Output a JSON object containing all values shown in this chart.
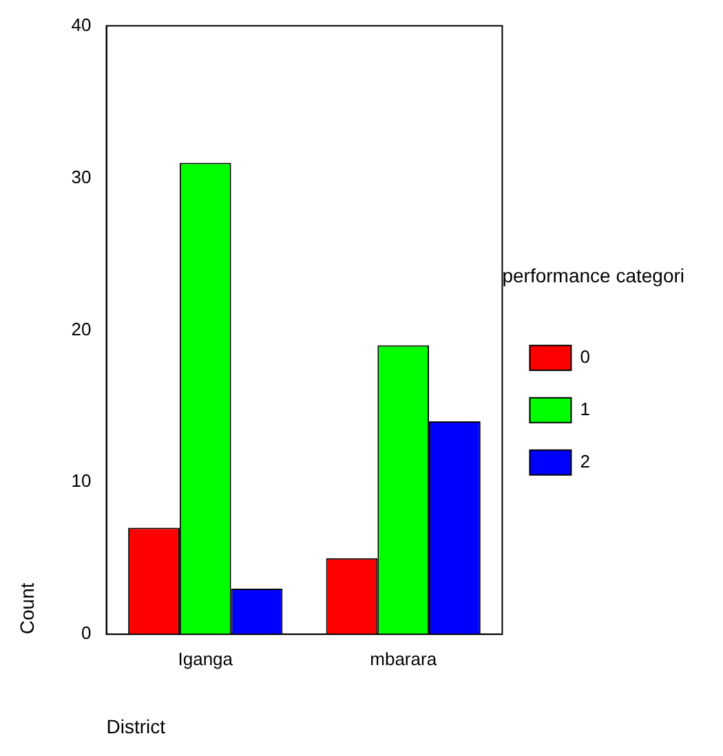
{
  "chart_data": {
    "type": "bar",
    "xlabel": "District",
    "ylabel": "Count",
    "legend_title": "performance categori",
    "categories": [
      "Iganga",
      "mbarara"
    ],
    "series": [
      {
        "name": "0",
        "color": "#ff0000",
        "values": [
          7,
          5
        ]
      },
      {
        "name": "1",
        "color": "#00ff00",
        "values": [
          31,
          19
        ]
      },
      {
        "name": "2",
        "color": "#0000ff",
        "values": [
          3,
          14
        ]
      }
    ],
    "ylim": [
      0,
      40
    ],
    "yticks": [
      0,
      10,
      20,
      30,
      40
    ],
    "grid": false,
    "legend": "right"
  }
}
